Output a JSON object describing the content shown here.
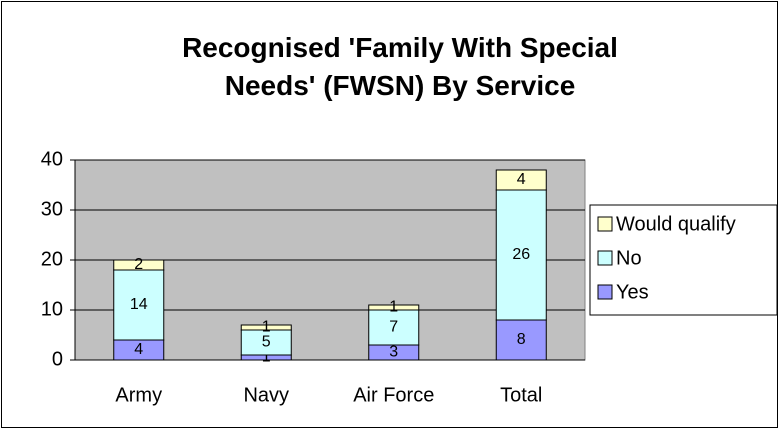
{
  "chart_data": {
    "type": "stacked_bar",
    "title": "Recognised 'Family With Special Needs' (FWSN) By Service",
    "categories": [
      "Army",
      "Navy",
      "Air Force",
      "Total"
    ],
    "series": [
      {
        "name": "Yes",
        "color": "#9999ff",
        "values": [
          4,
          1,
          3,
          8
        ]
      },
      {
        "name": "No",
        "color": "#ccffff",
        "values": [
          14,
          5,
          7,
          26
        ]
      },
      {
        "name": "Would qualify",
        "color": "#ffffcc",
        "values": [
          2,
          1,
          1,
          4
        ]
      }
    ],
    "ylim": [
      0,
      40
    ],
    "yticks": [
      0,
      10,
      20,
      30,
      40
    ],
    "grid": true,
    "legend": "right"
  }
}
